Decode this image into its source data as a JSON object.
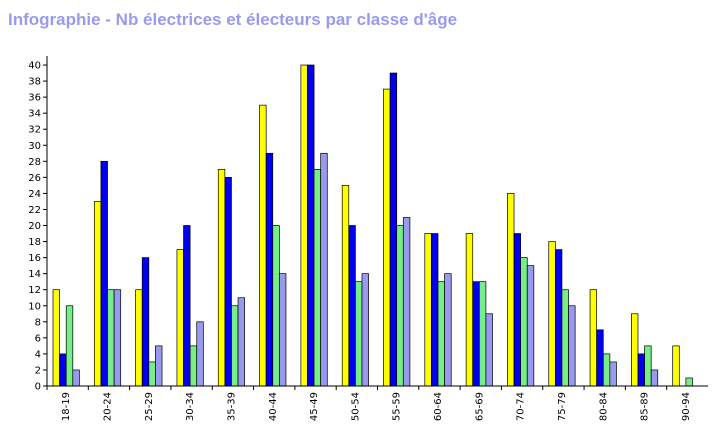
{
  "chart_data": {
    "type": "bar",
    "title": "Infographie - Nb électrices et électeurs par classe d'âge",
    "xlabel": "",
    "ylabel": "",
    "ylim": [
      0,
      41
    ],
    "yticks": [
      0,
      2,
      4,
      6,
      8,
      10,
      12,
      14,
      16,
      18,
      20,
      22,
      24,
      26,
      28,
      30,
      32,
      34,
      36,
      38,
      40
    ],
    "categories": [
      "18-19",
      "20-24",
      "25-29",
      "30-34",
      "35-39",
      "40-44",
      "45-49",
      "50-54",
      "55-59",
      "60-64",
      "65-69",
      "70-74",
      "75-79",
      "80-84",
      "85-89",
      "90-94"
    ],
    "series": [
      {
        "color": "#ffff00",
        "values": [
          12,
          23,
          12,
          17,
          27,
          35,
          40,
          25,
          37,
          19,
          19,
          24,
          18,
          12,
          9,
          5
        ]
      },
      {
        "color": "#0000ee",
        "values": [
          4,
          28,
          16,
          20,
          26,
          29,
          40,
          20,
          39,
          19,
          13,
          19,
          17,
          7,
          4,
          0
        ]
      },
      {
        "color": "#77ee88",
        "values": [
          10,
          12,
          3,
          5,
          10,
          20,
          27,
          13,
          20,
          13,
          13,
          16,
          12,
          4,
          5,
          1
        ]
      },
      {
        "color": "#9999ee",
        "values": [
          2,
          12,
          5,
          8,
          11,
          14,
          29,
          14,
          21,
          14,
          9,
          15,
          10,
          3,
          2,
          0
        ]
      }
    ],
    "grid": false,
    "legend": "none"
  }
}
